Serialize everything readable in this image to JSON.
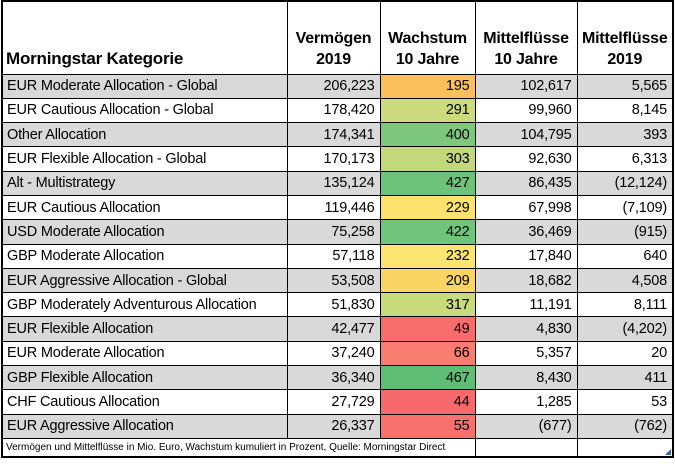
{
  "table": {
    "columns": [
      {
        "id": "kategorie",
        "label": "Morningstar Kategorie"
      },
      {
        "id": "vermoegen_2019",
        "label": "Vermögen\n2019"
      },
      {
        "id": "wachstum_10j",
        "label": "Wachstum\n10 Jahre"
      },
      {
        "id": "mittelfluesse_10j",
        "label": "Mittelflüsse\n10 Jahre"
      },
      {
        "id": "mittelfluesse_2019",
        "label": "Mittelflüsse\n2019"
      }
    ],
    "rows": [
      {
        "category": "EUR Moderate Allocation - Global",
        "vermoegen_2019": "206,223",
        "wachstum_10j": "195",
        "wachstum_color": "#FBC05C",
        "mittelfluesse_10j": "102,617",
        "mittelfluesse_2019": "5,565"
      },
      {
        "category": "EUR Cautious Allocation - Global",
        "vermoegen_2019": "178,420",
        "wachstum_10j": "291",
        "wachstum_color": "#CBDB7E",
        "mittelfluesse_10j": "99,960",
        "mittelfluesse_2019": "8,145"
      },
      {
        "category": "Other Allocation",
        "vermoegen_2019": "174,341",
        "wachstum_10j": "400",
        "wachstum_color": "#7EC87D",
        "mittelfluesse_10j": "104,795",
        "mittelfluesse_2019": "393"
      },
      {
        "category": "EUR Flexible Allocation - Global",
        "vermoegen_2019": "170,173",
        "wachstum_10j": "303",
        "wachstum_color": "#C3D77B",
        "mittelfluesse_10j": "92,630",
        "mittelfluesse_2019": "6,313"
      },
      {
        "category": "Alt - Multistrategy",
        "vermoegen_2019": "135,124",
        "wachstum_10j": "427",
        "wachstum_color": "#6EC37A",
        "mittelfluesse_10j": "86,435",
        "mittelfluesse_2019": "(12,124)"
      },
      {
        "category": "EUR Cautious Allocation",
        "vermoegen_2019": "119,446",
        "wachstum_10j": "229",
        "wachstum_color": "#FDE26E",
        "mittelfluesse_10j": "67,998",
        "mittelfluesse_2019": "(7,109)"
      },
      {
        "category": "USD Moderate Allocation",
        "vermoegen_2019": "75,258",
        "wachstum_10j": "422",
        "wachstum_color": "#70C47B",
        "mittelfluesse_10j": "36,469",
        "mittelfluesse_2019": "(915)"
      },
      {
        "category": "GBP Moderate Allocation",
        "vermoegen_2019": "57,118",
        "wachstum_10j": "232",
        "wachstum_color": "#FDE571",
        "mittelfluesse_10j": "17,840",
        "mittelfluesse_2019": "640"
      },
      {
        "category": "EUR Aggressive Allocation - Global",
        "vermoegen_2019": "53,508",
        "wachstum_10j": "209",
        "wachstum_color": "#FBD463",
        "mittelfluesse_10j": "18,682",
        "mittelfluesse_2019": "4,508"
      },
      {
        "category": "GBP Moderately Adventurous Allocation",
        "vermoegen_2019": "51,830",
        "wachstum_10j": "317",
        "wachstum_color": "#C8DA7A",
        "mittelfluesse_10j": "11,191",
        "mittelfluesse_2019": "8,111"
      },
      {
        "category": "EUR Flexible Allocation",
        "vermoegen_2019": "42,477",
        "wachstum_10j": "49",
        "wachstum_color": "#F96C6C",
        "mittelfluesse_10j": "4,830",
        "mittelfluesse_2019": "(4,202)"
      },
      {
        "category": "EUR Moderate Allocation",
        "vermoegen_2019": "37,240",
        "wachstum_10j": "66",
        "wachstum_color": "#F97E71",
        "mittelfluesse_10j": "5,357",
        "mittelfluesse_2019": "20"
      },
      {
        "category": "GBP Flexible Allocation",
        "vermoegen_2019": "36,340",
        "wachstum_10j": "467",
        "wachstum_color": "#5FBE76",
        "mittelfluesse_10j": "8,430",
        "mittelfluesse_2019": "411"
      },
      {
        "category": "CHF Cautious Allocation",
        "vermoegen_2019": "27,729",
        "wachstum_10j": "44",
        "wachstum_color": "#F8696B",
        "mittelfluesse_10j": "1,285",
        "mittelfluesse_2019": "53"
      },
      {
        "category": "EUR Aggressive Allocation",
        "vermoegen_2019": "26,337",
        "wachstum_10j": "55",
        "wachstum_color": "#F8716D",
        "mittelfluesse_10j": "(677)",
        "mittelfluesse_2019": "(762)"
      }
    ],
    "footnote": "Vermögen und Mittelflüsse in Mio. Euro, Wachstum kumuliert in Prozent, Quelle: Morningstar Direct",
    "colors": {
      "row_shade": "#D9D9D9",
      "border": "#000000",
      "fill_handle_blue": "#4060A8"
    }
  },
  "chart_data": {
    "type": "table",
    "title": "",
    "columns": [
      "Morningstar Kategorie",
      "Vermögen 2019",
      "Wachstum 10 Jahre",
      "Mittelflüsse 10 Jahre",
      "Mittelflüsse 2019"
    ],
    "rows": [
      [
        "EUR Moderate Allocation - Global",
        206223,
        195,
        102617,
        5565
      ],
      [
        "EUR Cautious Allocation - Global",
        178420,
        291,
        99960,
        8145
      ],
      [
        "Other Allocation",
        174341,
        400,
        104795,
        393
      ],
      [
        "EUR Flexible Allocation - Global",
        170173,
        303,
        92630,
        6313
      ],
      [
        "Alt - Multistrategy",
        135124,
        427,
        86435,
        -12124
      ],
      [
        "EUR Cautious Allocation",
        119446,
        229,
        67998,
        -7109
      ],
      [
        "USD Moderate Allocation",
        75258,
        422,
        36469,
        -915
      ],
      [
        "GBP Moderate Allocation",
        57118,
        232,
        17840,
        640
      ],
      [
        "EUR Aggressive Allocation - Global",
        53508,
        209,
        18682,
        4508
      ],
      [
        "GBP Moderately Adventurous Allocation",
        51830,
        317,
        11191,
        8111
      ],
      [
        "EUR Flexible Allocation",
        42477,
        49,
        4830,
        -4202
      ],
      [
        "EUR Moderate Allocation",
        37240,
        66,
        5357,
        20
      ],
      [
        "GBP Flexible Allocation",
        36340,
        467,
        8430,
        411
      ],
      [
        "CHF Cautious Allocation",
        27729,
        44,
        1285,
        53
      ],
      [
        "EUR Aggressive Allocation",
        26337,
        55,
        -677,
        -762
      ]
    ],
    "conditional_format_column": "Wachstum 10 Jahre",
    "conditional_format": "red-yellow-green color scale",
    "note": "Vermögen und Mittelflüsse in Mio. Euro, Wachstum kumuliert in Prozent, Quelle: Morningstar Direct"
  }
}
